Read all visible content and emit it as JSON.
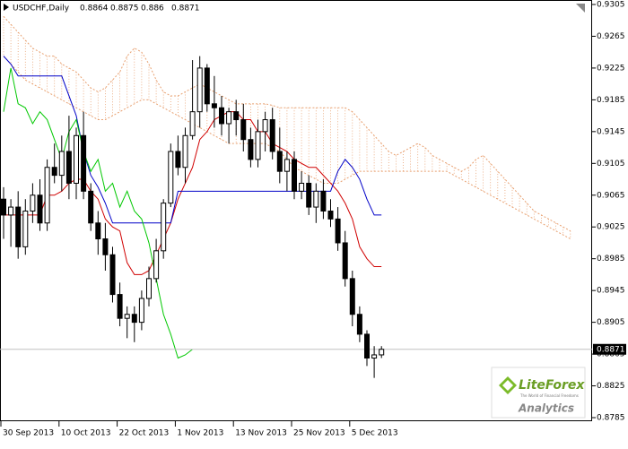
{
  "chart_data": {
    "type": "candlestick",
    "symbol": "USDCHF,Daily",
    "categories": [
      "30 Sep 2013",
      null,
      null,
      null,
      null,
      null,
      null,
      null,
      "10 Oct 2013",
      null,
      null,
      null,
      null,
      null,
      null,
      null,
      "22 Oct 2013",
      null,
      null,
      null,
      null,
      null,
      null,
      null,
      "1 Nov 2013",
      null,
      null,
      null,
      null,
      null,
      null,
      null,
      "13 Nov 2013",
      null,
      null,
      null,
      null,
      null,
      null,
      null,
      "25 Nov 2013",
      null,
      null,
      null,
      null,
      null,
      null,
      null,
      "5 Dec 2013",
      null,
      null,
      null,
      null,
      null,
      null,
      null,
      null,
      null,
      null,
      null,
      null,
      null,
      null,
      null,
      null,
      null,
      null,
      null,
      null,
      null,
      null,
      null,
      null,
      null,
      null,
      null,
      null,
      null,
      null
    ],
    "open": [
      0.906,
      0.904,
      0.905,
      0.9,
      0.9045,
      0.9065,
      0.903,
      0.91,
      0.909,
      0.912,
      0.908,
      0.914,
      0.907,
      0.903,
      0.901,
      0.899,
      0.894,
      0.891,
      0.8915,
      0.8905,
      0.8935,
      0.896,
      0.8995,
      0.9055,
      0.912,
      0.91,
      0.914,
      0.917,
      0.9225,
      0.918,
      0.9175,
      0.9155,
      0.917,
      0.916,
      0.9135,
      0.911,
      0.9145,
      0.916,
      0.912,
      0.9095,
      0.911,
      0.907,
      0.908,
      0.905,
      0.907,
      0.9045,
      0.9035,
      0.9005,
      0.896,
      0.8915,
      0.889,
      0.886,
      0.8864,
      null,
      null,
      null,
      null,
      null,
      null,
      null,
      null,
      null,
      null,
      null,
      null,
      null,
      null,
      null,
      null,
      null,
      null,
      null,
      null,
      null,
      null,
      null,
      null,
      null,
      null
    ],
    "high": [
      0.9075,
      0.906,
      0.907,
      0.906,
      0.908,
      0.9085,
      0.911,
      0.913,
      0.914,
      0.9165,
      0.915,
      0.917,
      0.908,
      0.9045,
      0.903,
      0.9,
      0.8955,
      0.8925,
      0.8925,
      0.8945,
      0.8975,
      0.901,
      0.906,
      0.913,
      0.914,
      0.915,
      0.9235,
      0.924,
      0.923,
      0.9215,
      0.919,
      0.9175,
      0.9185,
      0.918,
      0.915,
      0.916,
      0.917,
      0.9175,
      0.915,
      0.912,
      0.912,
      0.9095,
      0.909,
      0.908,
      0.9085,
      0.906,
      0.905,
      0.902,
      0.897,
      0.8925,
      0.8895,
      0.8875,
      0.8875,
      null,
      null,
      null,
      null,
      null,
      null,
      null,
      null,
      null,
      null,
      null,
      null,
      null,
      null,
      null,
      null,
      null,
      null,
      null,
      null,
      null,
      null,
      null,
      null,
      null,
      null
    ],
    "low": [
      0.901,
      0.9,
      0.8985,
      0.899,
      0.903,
      0.902,
      0.902,
      0.908,
      0.907,
      0.906,
      0.906,
      0.906,
      0.902,
      0.899,
      0.897,
      0.893,
      0.89,
      0.8885,
      0.888,
      0.8895,
      0.8925,
      0.8955,
      0.8985,
      0.905,
      0.909,
      0.908,
      0.9135,
      0.915,
      0.917,
      0.915,
      0.914,
      0.913,
      0.914,
      0.912,
      0.91,
      0.91,
      0.912,
      0.911,
      0.908,
      0.907,
      0.906,
      0.906,
      0.904,
      0.903,
      0.9035,
      0.9025,
      0.8995,
      0.895,
      0.89,
      0.888,
      0.885,
      0.8835,
      0.886,
      null,
      null,
      null,
      null,
      null,
      null,
      null,
      null,
      null,
      null,
      null,
      null,
      null,
      null,
      null,
      null,
      null,
      null,
      null,
      null,
      null,
      null,
      null,
      null,
      null,
      null
    ],
    "close": [
      0.904,
      0.905,
      0.9,
      0.9045,
      0.9065,
      0.903,
      0.91,
      0.909,
      0.912,
      0.908,
      0.914,
      0.907,
      0.903,
      0.901,
      0.899,
      0.894,
      0.891,
      0.8915,
      0.8905,
      0.8935,
      0.896,
      0.8995,
      0.9055,
      0.912,
      0.91,
      0.914,
      0.917,
      0.9225,
      0.918,
      0.9175,
      0.9155,
      0.917,
      0.916,
      0.9135,
      0.911,
      0.9145,
      0.916,
      0.912,
      0.9095,
      0.911,
      0.907,
      0.908,
      0.905,
      0.907,
      0.9045,
      0.9035,
      0.9005,
      0.896,
      0.8915,
      0.889,
      0.886,
      0.8864,
      0.8871,
      null,
      null,
      null,
      null,
      null,
      null,
      null,
      null,
      null,
      null,
      null,
      null,
      null,
      null,
      null,
      null,
      null,
      null,
      null,
      null,
      null,
      null,
      null,
      null,
      null,
      null
    ],
    "series": [
      {
        "color": "#d00000",
        "values": [
          0.904,
          0.904,
          0.904,
          0.904,
          0.904,
          0.904,
          0.9065,
          0.9065,
          0.907,
          0.908,
          0.9085,
          0.9085,
          0.907,
          0.906,
          0.9035,
          0.9025,
          0.902,
          0.898,
          0.8965,
          0.8965,
          0.897,
          0.899,
          0.901,
          0.903,
          0.906,
          0.908,
          0.91,
          0.9135,
          0.9145,
          0.916,
          0.9165,
          0.917,
          0.917,
          0.916,
          0.916,
          0.9145,
          0.9145,
          0.913,
          0.9125,
          0.912,
          0.911,
          0.9105,
          0.91,
          0.91,
          0.909,
          0.908,
          0.907,
          0.9055,
          0.9035,
          0.9,
          0.8985,
          0.8975,
          0.8975,
          null,
          null,
          null,
          null,
          null,
          null,
          null,
          null,
          null,
          null,
          null,
          null,
          null,
          null,
          null,
          null,
          null,
          null,
          null,
          null,
          null,
          null,
          null,
          null,
          null,
          null
        ]
      },
      {
        "color": "#0000c8",
        "values": [
          0.924,
          0.923,
          0.9215,
          0.9215,
          0.9215,
          0.9215,
          0.9215,
          0.9215,
          0.9215,
          0.919,
          0.9165,
          0.912,
          0.909,
          0.9075,
          0.9055,
          0.903,
          0.903,
          0.903,
          0.903,
          0.903,
          0.903,
          0.903,
          0.903,
          0.903,
          0.907,
          0.907,
          0.907,
          0.907,
          0.907,
          0.907,
          0.907,
          0.907,
          0.907,
          0.907,
          0.907,
          0.907,
          0.907,
          0.907,
          0.907,
          0.907,
          0.907,
          0.907,
          0.907,
          0.907,
          0.907,
          0.907,
          0.9095,
          0.911,
          0.91,
          0.9085,
          0.906,
          0.904,
          0.904,
          null,
          null,
          null,
          null,
          null,
          null,
          null,
          null,
          null,
          null,
          null,
          null,
          null,
          null,
          null,
          null,
          null,
          null,
          null,
          null,
          null,
          null,
          null,
          null,
          null,
          null
        ]
      },
      {
        "color": "#00c800",
        "values": [
          0.917,
          0.9225,
          0.918,
          0.9175,
          0.9155,
          0.917,
          0.916,
          0.9135,
          0.911,
          0.9145,
          0.916,
          0.912,
          0.9095,
          0.911,
          0.907,
          0.908,
          0.905,
          0.907,
          0.9045,
          0.9035,
          0.9005,
          0.896,
          0.8915,
          0.889,
          0.886,
          0.8864,
          0.8871,
          null,
          null,
          null,
          null,
          null,
          null,
          null,
          null,
          null,
          null,
          null,
          null,
          null,
          null,
          null,
          null,
          null,
          null,
          null,
          null,
          null,
          null,
          null,
          null,
          null,
          null,
          null,
          null,
          null,
          null,
          null,
          null,
          null,
          null,
          null,
          null,
          null,
          null,
          null,
          null,
          null,
          null,
          null,
          null,
          null,
          null,
          null,
          null,
          null,
          null,
          null,
          null
        ]
      }
    ],
    "cloud": {
      "color": "#e8a070",
      "span_a": [
        0.929,
        0.928,
        0.927,
        0.926,
        0.925,
        0.9245,
        0.924,
        0.924,
        0.923,
        0.9225,
        0.922,
        0.921,
        0.92,
        0.9195,
        0.92,
        0.921,
        0.922,
        0.924,
        0.925,
        0.9245,
        0.923,
        0.921,
        0.9195,
        0.919,
        0.919,
        0.9195,
        0.92,
        0.9205,
        0.92,
        0.9195,
        0.919,
        0.9185,
        0.918,
        0.918,
        0.918,
        0.918,
        0.918,
        0.9178,
        0.9175,
        0.9175,
        0.9175,
        0.9175,
        0.9175,
        0.9175,
        0.9175,
        0.9175,
        0.9175,
        0.9175,
        0.917,
        0.916,
        0.915,
        0.914,
        0.913,
        0.912,
        0.9115,
        0.912,
        0.9125,
        0.913,
        0.9125,
        0.9115,
        0.911,
        0.9105,
        0.91,
        0.9095,
        0.91,
        0.911,
        0.9115,
        0.9105,
        0.9095,
        0.9085,
        0.9075,
        0.9065,
        0.9055,
        0.9045,
        0.904,
        0.9035,
        0.903,
        0.9025,
        0.902
      ],
      "span_b": [
        0.924,
        0.923,
        0.922,
        0.921,
        0.9205,
        0.92,
        0.9195,
        0.919,
        0.9185,
        0.918,
        0.9175,
        0.917,
        0.9165,
        0.916,
        0.916,
        0.9165,
        0.917,
        0.9175,
        0.918,
        0.9185,
        0.9185,
        0.918,
        0.9175,
        0.917,
        0.9165,
        0.916,
        0.9155,
        0.915,
        0.9145,
        0.914,
        0.9135,
        0.913,
        0.913,
        0.913,
        0.913,
        0.913,
        0.913,
        0.9125,
        0.912,
        0.911,
        0.91,
        0.9095,
        0.909,
        0.9085,
        0.908,
        0.908,
        0.908,
        0.9085,
        0.909,
        0.9095,
        0.9095,
        0.9095,
        0.9095,
        0.9095,
        0.9095,
        0.9095,
        0.9095,
        0.9095,
        0.9095,
        0.9095,
        0.9095,
        0.9095,
        0.909,
        0.9085,
        0.908,
        0.9075,
        0.907,
        0.9065,
        0.906,
        0.9055,
        0.905,
        0.9045,
        0.904,
        0.9035,
        0.903,
        0.9025,
        0.902,
        0.9015,
        0.901
      ]
    },
    "ylim": [
      0.8785,
      0.9305
    ],
    "yticks": [
      0.9305,
      0.9265,
      0.9225,
      0.9185,
      0.9145,
      0.9105,
      0.9065,
      0.9025,
      0.8985,
      0.8945,
      0.8905,
      0.8865,
      0.8825,
      0.8785
    ],
    "grid": false
  },
  "logo": {
    "name": "LiteForex",
    "tagline": "The World of Financial Freedoms",
    "subtitle": "Analytics"
  }
}
